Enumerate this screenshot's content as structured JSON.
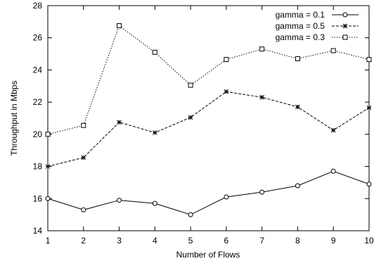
{
  "chart_data": {
    "type": "line",
    "title": "",
    "xlabel": "Number of Flows",
    "ylabel": "Throughput in Mbps",
    "x": [
      1,
      2,
      3,
      4,
      5,
      6,
      7,
      8,
      9,
      10
    ],
    "xlim": [
      1,
      10
    ],
    "ylim": [
      14,
      28
    ],
    "xticks": [
      1,
      2,
      3,
      4,
      5,
      6,
      7,
      8,
      9,
      10
    ],
    "yticks": [
      14,
      16,
      18,
      20,
      22,
      24,
      26,
      28
    ],
    "grid": false,
    "legend_position": "top-right",
    "series": [
      {
        "name": "gamma = 0.1",
        "marker": "circle",
        "line_style": "solid",
        "color": "#000000",
        "values": [
          16.0,
          15.3,
          15.9,
          15.7,
          15.0,
          16.1,
          16.4,
          16.8,
          17.7,
          16.9
        ]
      },
      {
        "name": "gamma = 0.5",
        "marker": "star",
        "line_style": "dashed",
        "color": "#000000",
        "values": [
          18.0,
          18.55,
          20.75,
          20.1,
          21.05,
          22.65,
          22.3,
          21.7,
          20.25,
          21.65
        ]
      },
      {
        "name": "gamma = 0.3",
        "marker": "square",
        "line_style": "dotted",
        "color": "#000000",
        "values": [
          20.0,
          20.55,
          26.75,
          25.1,
          23.05,
          24.65,
          25.3,
          24.7,
          25.2,
          24.65
        ]
      }
    ]
  }
}
